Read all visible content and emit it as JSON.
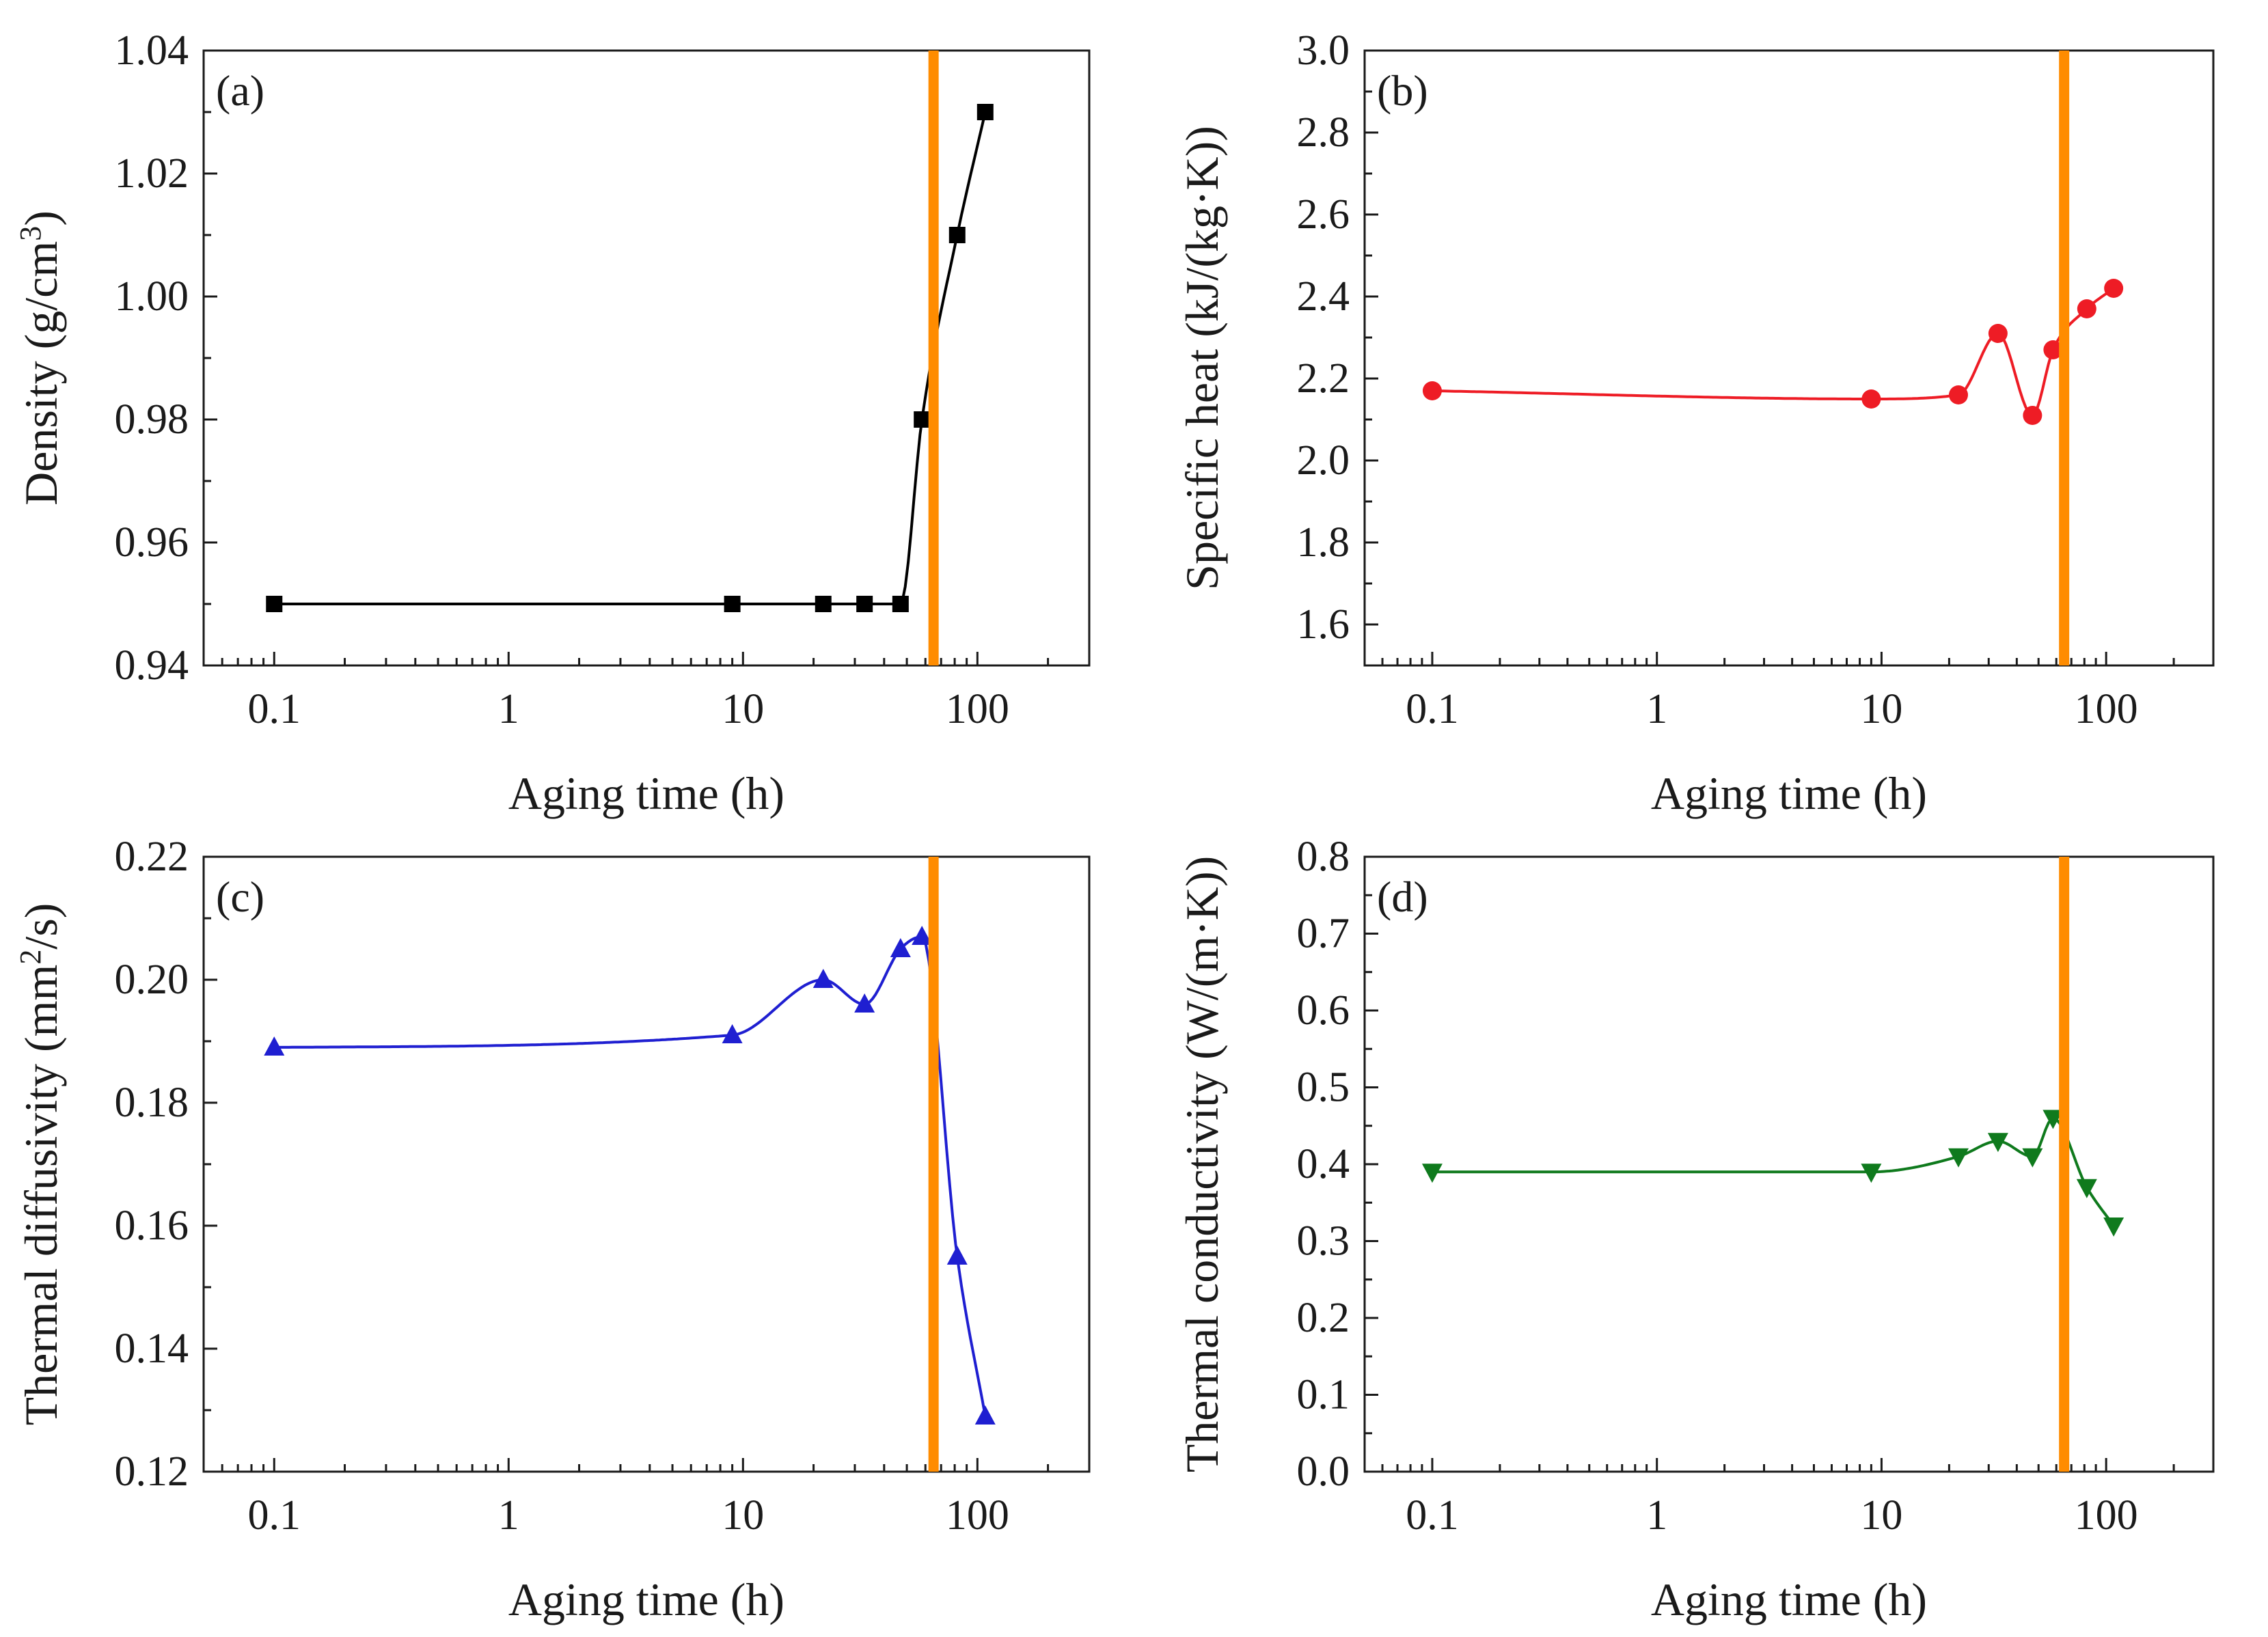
{
  "figure": "four-panel aging time plots",
  "colors": {
    "marker_line": "#ff8c00",
    "axis": "#1a1a1a"
  },
  "chart_data": [
    {
      "type": "line",
      "panel_label": "(a)",
      "title": "",
      "xlabel": "Aging time (h)",
      "ylabel": "Density (g/cm³)",
      "xscale": "log",
      "xlim": [
        0.05,
        300
      ],
      "ylim": [
        0.94,
        1.04
      ],
      "xticks": [
        0.1,
        1,
        10,
        100
      ],
      "xtick_labels": [
        "0.1",
        "1",
        "10",
        "100"
      ],
      "yticks": [
        0.94,
        0.96,
        0.98,
        1.0,
        1.02,
        1.04
      ],
      "ytick_labels": [
        "0.94",
        "0.96",
        "0.98",
        "1.00",
        "1.02",
        "1.04"
      ],
      "vline_x": 65,
      "series": [
        {
          "name": "Density",
          "color": "#000000",
          "marker": "square",
          "x": [
            0.1,
            9,
            22,
            33,
            47,
            58,
            82,
            108
          ],
          "y": [
            0.95,
            0.95,
            0.95,
            0.95,
            0.95,
            0.98,
            1.01,
            1.03
          ]
        }
      ]
    },
    {
      "type": "line",
      "panel_label": "(b)",
      "title": "",
      "xlabel": "Aging time (h)",
      "ylabel": "Specific heat (kJ/(kg·K))",
      "xscale": "log",
      "xlim": [
        0.05,
        300
      ],
      "ylim": [
        1.5,
        3.0
      ],
      "xticks": [
        0.1,
        1,
        10,
        100
      ],
      "xtick_labels": [
        "0.1",
        "1",
        "10",
        "100"
      ],
      "yticks": [
        1.6,
        1.8,
        2.0,
        2.2,
        2.4,
        2.6,
        2.8,
        3.0
      ],
      "ytick_labels": [
        "1.6",
        "1.8",
        "2.0",
        "2.2",
        "2.4",
        "2.6",
        "2.8",
        "3.0"
      ],
      "vline_x": 65,
      "series": [
        {
          "name": "Specific heat",
          "color": "#ee1c25",
          "marker": "circle",
          "x": [
            0.1,
            9,
            22,
            33,
            47,
            58,
            82,
            108
          ],
          "y": [
            2.17,
            2.15,
            2.16,
            2.31,
            2.11,
            2.27,
            2.37,
            2.42
          ]
        }
      ]
    },
    {
      "type": "line",
      "panel_label": "(c)",
      "title": "",
      "xlabel": "Aging time (h)",
      "ylabel": "Thermal diffusivity (mm²/s)",
      "xscale": "log",
      "xlim": [
        0.05,
        300
      ],
      "ylim": [
        0.12,
        0.22
      ],
      "xticks": [
        0.1,
        1,
        10,
        100
      ],
      "xtick_labels": [
        "0.1",
        "1",
        "10",
        "100"
      ],
      "yticks": [
        0.12,
        0.14,
        0.16,
        0.18,
        0.2,
        0.22
      ],
      "ytick_labels": [
        "0.12",
        "0.14",
        "0.16",
        "0.18",
        "0.20",
        "0.22"
      ],
      "vline_x": 65,
      "series": [
        {
          "name": "Thermal diffusivity",
          "color": "#1f1fd1",
          "marker": "triangle-up",
          "x": [
            0.1,
            9,
            22,
            33,
            47,
            58,
            82,
            108
          ],
          "y": [
            0.189,
            0.191,
            0.2,
            0.196,
            0.205,
            0.207,
            0.155,
            0.129
          ]
        }
      ]
    },
    {
      "type": "line",
      "panel_label": "(d)",
      "title": "",
      "xlabel": "Aging time (h)",
      "ylabel": "Thermal conductivity (W/(m·K))",
      "xscale": "log",
      "xlim": [
        0.05,
        300
      ],
      "ylim": [
        0.0,
        0.8
      ],
      "xticks": [
        0.1,
        1,
        10,
        100
      ],
      "xtick_labels": [
        "0.1",
        "1",
        "10",
        "100"
      ],
      "yticks": [
        0.0,
        0.1,
        0.2,
        0.3,
        0.4,
        0.5,
        0.6,
        0.7,
        0.8
      ],
      "ytick_labels": [
        "0.0",
        "0.1",
        "0.2",
        "0.3",
        "0.4",
        "0.5",
        "0.6",
        "0.7",
        "0.8"
      ],
      "vline_x": 65,
      "series": [
        {
          "name": "Thermal conductivity",
          "color": "#0f7a1d",
          "marker": "triangle-down",
          "x": [
            0.1,
            9,
            22,
            33,
            47,
            58,
            82,
            108
          ],
          "y": [
            0.39,
            0.39,
            0.41,
            0.43,
            0.41,
            0.46,
            0.37,
            0.32
          ]
        }
      ]
    }
  ]
}
